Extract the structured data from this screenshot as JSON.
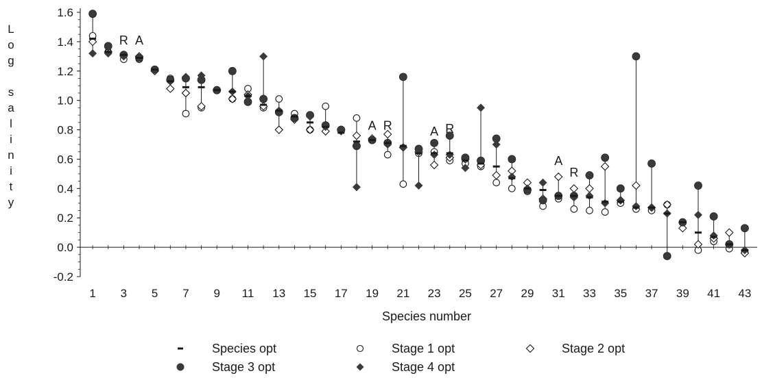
{
  "chart_data": {
    "type": "scatter",
    "title": "",
    "xlabel": "Species number",
    "ylabel": "Log salinity",
    "ylim": [
      -0.2,
      1.6
    ],
    "xlim": [
      0.2,
      43.8
    ],
    "yticks": [
      "1.6",
      "1.4",
      "1.2",
      "1.0",
      "0.8",
      "0.6",
      "0.4",
      "0.2",
      "0.0",
      "-0.2"
    ],
    "ytick_values": [
      1.6,
      1.4,
      1.2,
      1.0,
      0.8,
      0.6,
      0.4,
      0.2,
      0.0,
      -0.2
    ],
    "xticks": [
      "1",
      "3",
      "5",
      "7",
      "9",
      "11",
      "13",
      "15",
      "17",
      "19",
      "21",
      "23",
      "25",
      "27",
      "29",
      "31",
      "33",
      "35",
      "37",
      "39",
      "41",
      "43"
    ],
    "xtick_values": [
      1,
      3,
      5,
      7,
      9,
      11,
      13,
      15,
      17,
      19,
      21,
      23,
      25,
      27,
      29,
      31,
      33,
      35,
      37,
      39,
      41,
      43
    ],
    "grid": false,
    "legend_position": "bottom",
    "species": [
      1,
      2,
      3,
      4,
      5,
      6,
      7,
      8,
      9,
      10,
      11,
      12,
      13,
      14,
      15,
      16,
      17,
      18,
      19,
      20,
      21,
      22,
      23,
      24,
      25,
      26,
      27,
      28,
      29,
      30,
      31,
      32,
      33,
      34,
      35,
      36,
      37,
      38,
      39,
      40,
      41,
      42,
      43
    ],
    "series": [
      {
        "name": "Species opt",
        "marker": "dash",
        "values": [
          1.42,
          1.33,
          1.31,
          1.29,
          1.21,
          1.13,
          1.09,
          1.09,
          1.07,
          1.06,
          1.03,
          0.97,
          0.93,
          0.89,
          0.85,
          0.82,
          0.78,
          0.72,
          0.73,
          0.71,
          0.69,
          0.64,
          0.64,
          0.64,
          0.59,
          0.57,
          0.55,
          0.47,
          0.4,
          0.39,
          0.35,
          0.35,
          0.34,
          0.31,
          0.31,
          0.27,
          0.27,
          0.23,
          0.17,
          0.1,
          0.07,
          0.02,
          -0.02
        ]
      },
      {
        "name": "Stage 1 opt",
        "marker": "open-circle",
        "values": [
          1.44,
          1.33,
          1.28,
          1.28,
          1.21,
          1.15,
          0.91,
          0.95,
          1.07,
          1.01,
          1.08,
          0.95,
          1.01,
          0.91,
          0.8,
          0.96,
          0.8,
          0.88,
          0.73,
          0.63,
          0.43,
          0.64,
          0.65,
          0.59,
          0.57,
          0.55,
          0.44,
          0.4,
          0.38,
          0.28,
          0.33,
          0.26,
          0.25,
          0.24,
          0.3,
          0.26,
          0.25,
          0.29,
          0.17,
          -0.02,
          0.04,
          -0.01,
          -0.03
        ]
      },
      {
        "name": "Stage 2 opt",
        "marker": "open-diamond",
        "values": [
          1.4,
          1.33,
          1.31,
          1.3,
          1.2,
          1.08,
          1.05,
          0.96,
          1.07,
          1.01,
          1.04,
          0.96,
          0.8,
          0.87,
          0.8,
          0.79,
          0.8,
          0.76,
          0.74,
          0.77,
          0.68,
          0.65,
          0.56,
          0.61,
          0.6,
          0.56,
          0.49,
          0.52,
          0.44,
          0.33,
          0.48,
          0.4,
          0.4,
          0.55,
          0.32,
          0.42,
          0.27,
          0.29,
          0.13,
          0.02,
          0.06,
          0.1,
          -0.04
        ]
      },
      {
        "name": "Stage 3 opt",
        "marker": "filled-circle",
        "values": [
          1.59,
          1.37,
          1.31,
          1.29,
          1.21,
          1.14,
          1.15,
          1.14,
          1.07,
          1.2,
          0.99,
          1.01,
          0.92,
          0.88,
          0.9,
          0.83,
          0.8,
          0.69,
          0.73,
          0.71,
          1.16,
          0.67,
          0.71,
          0.76,
          0.61,
          0.59,
          0.74,
          0.6,
          0.39,
          0.32,
          0.35,
          0.35,
          0.49,
          0.61,
          0.4,
          1.3,
          0.57,
          -0.06,
          0.17,
          0.42,
          0.21,
          0.02,
          0.13
        ]
      },
      {
        "name": "Stage 4 opt",
        "marker": "filled-diamond",
        "values": [
          1.32,
          1.32,
          1.3,
          1.29,
          1.21,
          1.13,
          1.16,
          1.17,
          1.07,
          1.06,
          1.03,
          1.3,
          0.93,
          0.88,
          0.89,
          0.82,
          0.79,
          0.41,
          0.73,
          0.7,
          0.68,
          0.42,
          0.63,
          0.63,
          0.54,
          0.95,
          0.7,
          0.48,
          0.4,
          0.44,
          0.35,
          0.34,
          0.35,
          0.3,
          0.32,
          0.28,
          0.27,
          0.23,
          0.17,
          0.22,
          0.08,
          0.02,
          -0.02
        ]
      }
    ],
    "annotations": [
      {
        "text": "R",
        "x": 3,
        "y": 1.38
      },
      {
        "text": "A",
        "x": 4,
        "y": 1.38
      },
      {
        "text": "A",
        "x": 19,
        "y": 0.8
      },
      {
        "text": "R",
        "x": 20,
        "y": 0.8
      },
      {
        "text": "A",
        "x": 23,
        "y": 0.76
      },
      {
        "text": "R",
        "x": 24,
        "y": 0.78
      },
      {
        "text": "A",
        "x": 31,
        "y": 0.56
      },
      {
        "text": "R",
        "x": 32,
        "y": 0.48
      }
    ]
  },
  "legend": {
    "items": [
      {
        "label": "Species opt",
        "icon": "dash-icon"
      },
      {
        "label": "Stage 1 opt",
        "icon": "open-circle-icon"
      },
      {
        "label": "Stage 2 opt",
        "icon": "open-diamond-icon"
      },
      {
        "label": "Stage 3 opt",
        "icon": "filled-circle-icon"
      },
      {
        "label": "Stage 4 opt",
        "icon": "filled-diamond-icon"
      }
    ]
  },
  "colors": {
    "ink": "#1a1a1a",
    "filled": "#3a3a3a",
    "background": "#ffffff"
  }
}
